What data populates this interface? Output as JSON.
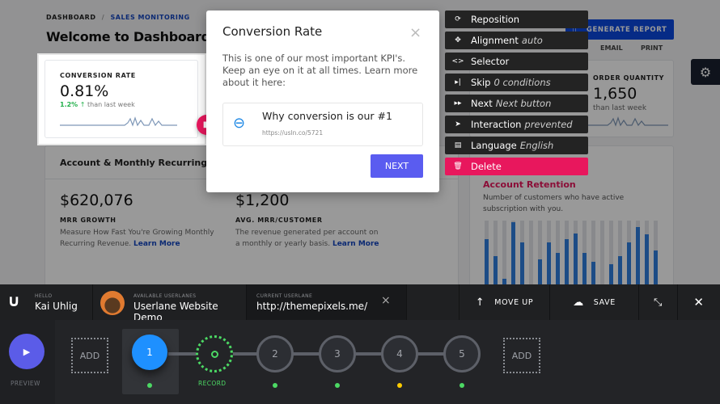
{
  "breadcrumb": {
    "root": "DASHBOARD",
    "separator": "/",
    "current": "SALES MONITORING"
  },
  "page_title": "Welcome to Dashboard",
  "header_buttons": {
    "email": "EMAIL",
    "print": "PRINT",
    "generate": "GENERATE REPORT"
  },
  "conversion_card": {
    "label": "CONVERSION RATE",
    "value": "0.81%",
    "change": "1.2%",
    "change_suffix": "than last week"
  },
  "order_card": {
    "label": "ORDER QUANTITY",
    "value": "1,650",
    "change_suffix": "than last week"
  },
  "mrr_card": {
    "heading": "Account & Monthly Recurring Reve",
    "growth_value": "$620,076",
    "growth_label": "MRR GROWTH",
    "growth_desc": "Measure How Fast You're Growing Monthly Recurring Revenue.",
    "avg_value": "$1,200",
    "avg_label": "AVG. MRR/CUSTOMER",
    "avg_desc": "The revenue generated per account on a monthly or yearly basis.",
    "learn_more": "Learn More"
  },
  "retention_card": {
    "heading": "Account Retention",
    "desc": "Number of customers who have active subscription with you.",
    "bars": [
      0.55,
      0.4,
      0.2,
      0.7,
      0.52,
      0.1,
      0.37,
      0.52,
      0.43,
      0.55,
      0.6,
      0.43,
      0.35,
      0.15,
      0.33,
      0.4,
      0.52,
      0.66,
      0.59,
      0.45
    ]
  },
  "popup": {
    "title": "Conversion Rate",
    "body": "This is one of our most important KPI's. Keep an eye on it at all times. Learn more about it here:",
    "link_title": "Why conversion is our #1",
    "link_url": "https://usln.co/5721",
    "next": "NEXT"
  },
  "step_menu": [
    {
      "icon": "reposition-icon",
      "glyph": "⟳",
      "label": "Reposition",
      "value": ""
    },
    {
      "icon": "alignment-icon",
      "glyph": "✥",
      "label": "Alignment",
      "value": "auto"
    },
    {
      "icon": "selector-icon",
      "glyph": "<>",
      "label": "Selector",
      "value": ""
    },
    {
      "icon": "skip-icon",
      "glyph": "▸|",
      "label": "Skip",
      "value": "0 conditions"
    },
    {
      "icon": "next-icon",
      "glyph": "▸▸",
      "label": "Next",
      "value": "Next button"
    },
    {
      "icon": "cursor-icon",
      "glyph": "➤",
      "label": "Interaction",
      "value": "prevented"
    },
    {
      "icon": "language-icon",
      "glyph": "▤",
      "label": "Language",
      "value": "English"
    },
    {
      "icon": "trash-icon",
      "glyph": "🗑",
      "label": "Delete",
      "value": ""
    }
  ],
  "editor": {
    "hello_label": "HELLO",
    "user": "Kai Uhlig",
    "available_label": "AVAILABLE USERLANES",
    "available": "Userlane Website Demo",
    "current_label": "CURRENT USERLANE",
    "current": "http://themepixels.me/",
    "move_up": "MOVE UP",
    "save": "SAVE",
    "preview": "PREVIEW",
    "add": "ADD",
    "record": "RECORD",
    "steps": [
      {
        "n": "1",
        "status": "#4cd964"
      },
      {
        "n": "2",
        "status": "#4cd964"
      },
      {
        "n": "3",
        "status": "#4cd964"
      },
      {
        "n": "4",
        "status": "#ffcc00"
      },
      {
        "n": "5",
        "status": "#4cd964"
      }
    ]
  },
  "colors": {
    "accent": "#5a5cf0",
    "delete": "#e8175d",
    "active_step": "#1e90ff",
    "record": "#4cd964",
    "brand": "#1546c0"
  }
}
